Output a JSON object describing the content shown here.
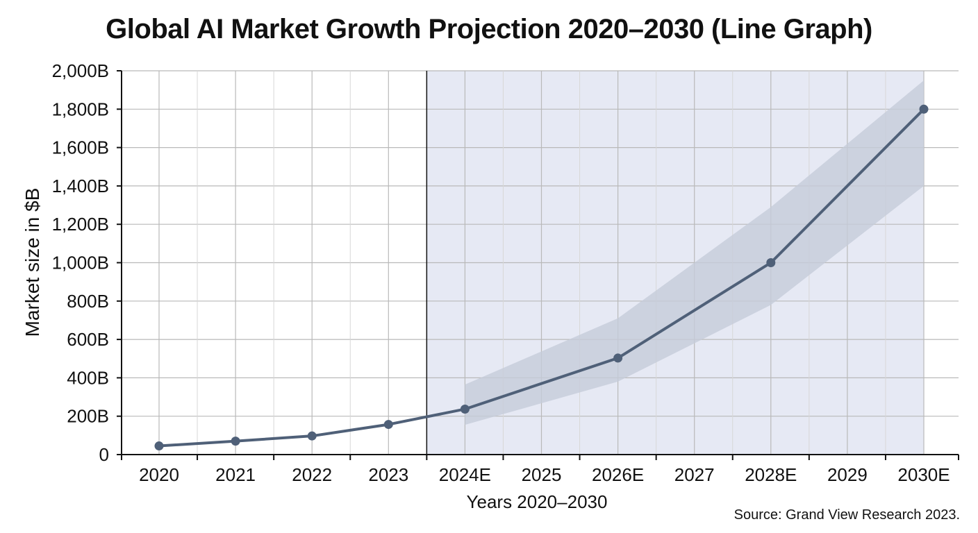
{
  "title": "Global AI Market Growth Projection 2020–2030 (Line Graph)",
  "source": "Source: Grand View Research 2023.",
  "chart_data": {
    "type": "line",
    "title": "Global AI Market Growth Projection 2020–2030 (Line Graph)",
    "xlabel": "Years 2020–2030",
    "ylabel": "Market size in $B",
    "categories": [
      "2020",
      "2021",
      "2022",
      "2023",
      "2024E",
      "2025",
      "2026E",
      "2027",
      "2028E",
      "2029",
      "2030E"
    ],
    "ylim": [
      0,
      2000
    ],
    "yticks": [
      0,
      200,
      400,
      600,
      800,
      1000,
      1200,
      1400,
      1600,
      1800,
      2000
    ],
    "ytick_labels": [
      "0",
      "200B",
      "400B",
      "600B",
      "800B",
      "1,000B",
      "1,200B",
      "1,400B",
      "1,600B",
      "1,800B",
      "2,000B"
    ],
    "grid": true,
    "series": [
      {
        "values": [
          45,
          70,
          97,
          157,
          237,
          null,
          503,
          null,
          1000,
          null,
          1800
        ],
        "color": "#4f6078"
      }
    ],
    "uncertainty_band": {
      "x": [
        "2024E",
        "2026E",
        "2028E",
        "2030E"
      ],
      "upper": [
        365,
        710,
        1290,
        1950
      ],
      "lower": [
        155,
        380,
        780,
        1400
      ],
      "color": "#c5ccda"
    },
    "forecast_region": {
      "from_x": 3.5,
      "to_x": 10,
      "color": "#e6e9f4"
    }
  }
}
